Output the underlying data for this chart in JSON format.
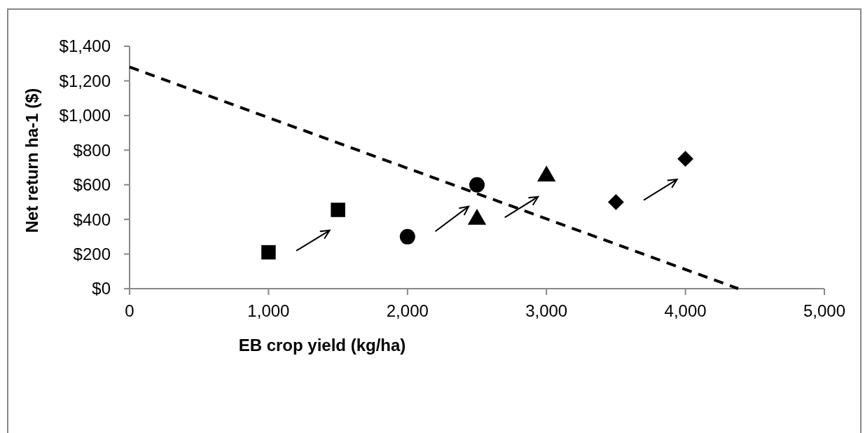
{
  "chart_data": {
    "type": "scatter",
    "xlabel": "EB crop yield (kg/ha)",
    "ylabel": "Net return ha-1 ($)",
    "xlim": [
      0,
      5000
    ],
    "ylim": [
      0,
      1400
    ],
    "xticks": [
      {
        "value": 0,
        "label": "0"
      },
      {
        "value": 1000,
        "label": "1,000"
      },
      {
        "value": 2000,
        "label": "2,000"
      },
      {
        "value": 3000,
        "label": "3,000"
      },
      {
        "value": 4000,
        "label": "4,000"
      },
      {
        "value": 5000,
        "label": "5,000"
      }
    ],
    "yticks": [
      {
        "value": 0,
        "label": "$0"
      },
      {
        "value": 200,
        "label": "$200"
      },
      {
        "value": 400,
        "label": "$400"
      },
      {
        "value": 600,
        "label": "$600"
      },
      {
        "value": 800,
        "label": "$800"
      },
      {
        "value": 1000,
        "label": "$1,000"
      },
      {
        "value": 1200,
        "label": "$1,200"
      },
      {
        "value": 1400,
        "label": "$1,400"
      }
    ],
    "grid": false,
    "series": [
      {
        "type": "line",
        "x": [
          0,
          4380
        ],
        "values": [
          1280,
          0
        ],
        "color": "#000000",
        "line_style": "dashed",
        "marker": "none"
      },
      {
        "x": [
          1000,
          1500
        ],
        "values": [
          210,
          455
        ],
        "color": "#000000",
        "marker": "square"
      },
      {
        "x": [
          2000,
          2500
        ],
        "values": [
          300,
          600
        ],
        "color": "#000000",
        "marker": "circle"
      },
      {
        "x": [
          2500,
          3000
        ],
        "values": [
          400,
          650
        ],
        "color": "#000000",
        "marker": "triangle"
      },
      {
        "x": [
          3500,
          4000
        ],
        "values": [
          500,
          750
        ],
        "color": "#000000",
        "marker": "diamond"
      }
    ]
  }
}
